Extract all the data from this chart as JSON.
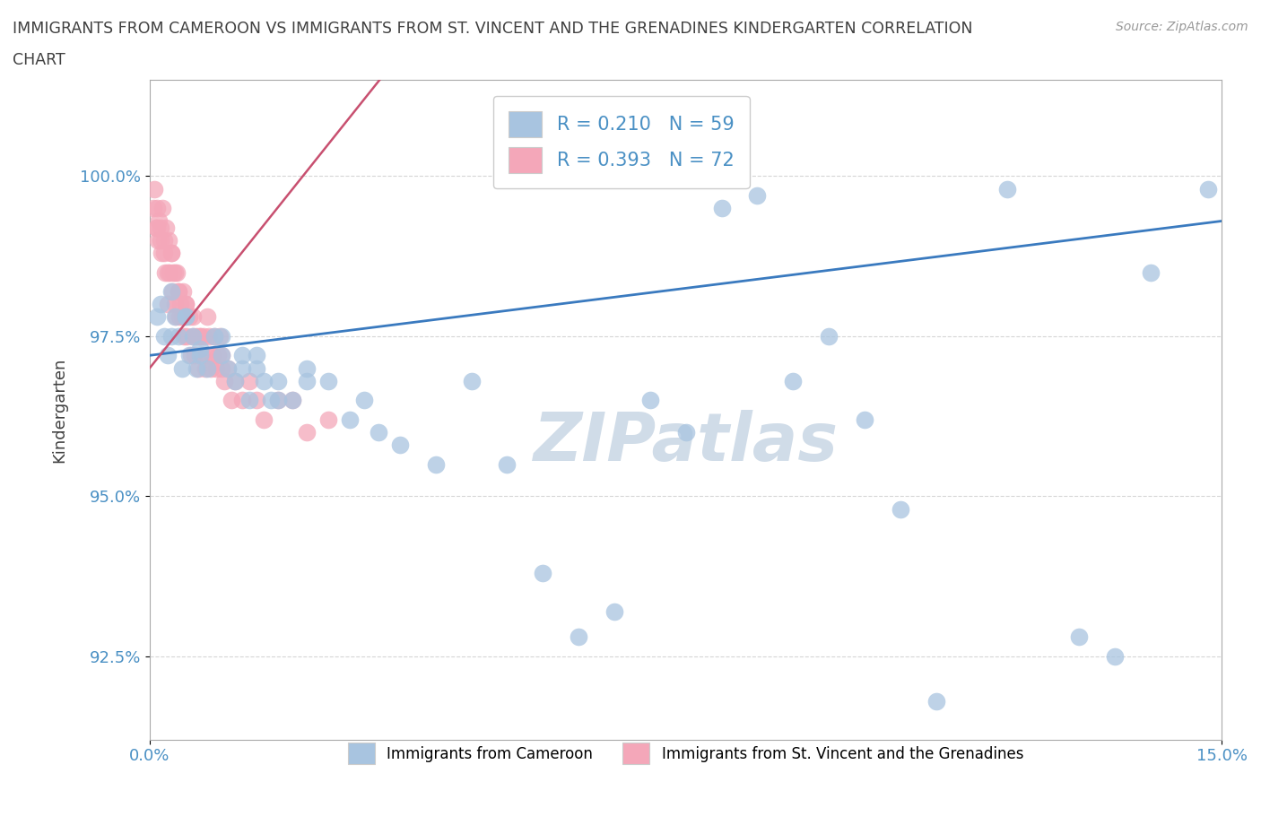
{
  "title_line1": "IMMIGRANTS FROM CAMEROON VS IMMIGRANTS FROM ST. VINCENT AND THE GRENADINES KINDERGARTEN CORRELATION",
  "title_line2": "CHART",
  "source": "Source: ZipAtlas.com",
  "ylabel": "Kindergarten",
  "xlim": [
    0.0,
    15.0
  ],
  "ylim": [
    91.2,
    101.5
  ],
  "yticks": [
    92.5,
    95.0,
    97.5,
    100.0
  ],
  "ytick_labels": [
    "92.5%",
    "95.0%",
    "97.5%",
    "100.0%"
  ],
  "xticks": [
    0.0,
    15.0
  ],
  "xtick_labels": [
    "0.0%",
    "15.0%"
  ],
  "legend_R1": "R = 0.210",
  "legend_N1": "N = 59",
  "legend_R2": "R = 0.393",
  "legend_N2": "N = 72",
  "series1_color": "#a8c4e0",
  "series2_color": "#f4a7b9",
  "trendline1_color": "#3a7abf",
  "trendline2_color": "#c85070",
  "watermark": "ZIPatlas",
  "watermark_color": "#d0dce8",
  "series1_x": [
    0.1,
    0.15,
    0.2,
    0.25,
    0.3,
    0.35,
    0.4,
    0.45,
    0.5,
    0.55,
    0.6,
    0.65,
    0.7,
    0.8,
    0.9,
    1.0,
    1.1,
    1.2,
    1.3,
    1.4,
    1.5,
    1.6,
    1.7,
    1.8,
    2.0,
    2.2,
    2.5,
    2.8,
    3.0,
    3.2,
    3.5,
    4.0,
    4.5,
    5.0,
    5.5,
    6.0,
    6.5,
    7.0,
    7.5,
    8.0,
    8.5,
    9.0,
    9.5,
    10.0,
    10.5,
    11.0,
    12.0,
    13.0,
    13.5,
    14.0,
    14.8,
    0.3,
    0.5,
    0.7,
    1.0,
    1.3,
    1.5,
    1.8,
    2.2
  ],
  "series1_y": [
    97.8,
    98.0,
    97.5,
    97.2,
    98.2,
    97.8,
    97.5,
    97.0,
    97.8,
    97.2,
    97.5,
    97.0,
    97.3,
    97.0,
    97.5,
    97.2,
    97.0,
    96.8,
    97.2,
    96.5,
    97.0,
    96.8,
    96.5,
    96.8,
    96.5,
    97.0,
    96.8,
    96.2,
    96.5,
    96.0,
    95.8,
    95.5,
    96.8,
    95.5,
    93.8,
    92.8,
    93.2,
    96.5,
    96.0,
    99.5,
    99.7,
    96.8,
    97.5,
    96.2,
    94.8,
    91.8,
    99.8,
    92.8,
    92.5,
    98.5,
    99.8,
    97.5,
    97.8,
    97.2,
    97.5,
    97.0,
    97.2,
    96.5,
    96.8
  ],
  "series2_x": [
    0.05,
    0.07,
    0.09,
    0.1,
    0.12,
    0.13,
    0.15,
    0.17,
    0.18,
    0.2,
    0.22,
    0.23,
    0.25,
    0.27,
    0.28,
    0.3,
    0.32,
    0.33,
    0.35,
    0.37,
    0.38,
    0.4,
    0.42,
    0.43,
    0.45,
    0.47,
    0.48,
    0.5,
    0.52,
    0.55,
    0.58,
    0.6,
    0.63,
    0.65,
    0.68,
    0.7,
    0.73,
    0.75,
    0.78,
    0.8,
    0.83,
    0.85,
    0.88,
    0.9,
    0.93,
    0.95,
    0.98,
    1.0,
    1.05,
    1.1,
    1.15,
    1.2,
    1.3,
    1.4,
    1.5,
    1.6,
    1.8,
    2.0,
    2.2,
    2.5,
    0.1,
    0.15,
    0.2,
    0.25,
    0.3,
    0.35,
    0.4,
    0.5,
    0.6,
    0.7,
    0.8,
    1.0
  ],
  "series2_y": [
    99.5,
    99.8,
    99.2,
    99.5,
    99.0,
    99.3,
    99.2,
    98.8,
    99.5,
    99.0,
    98.5,
    99.2,
    98.0,
    99.0,
    98.5,
    98.8,
    98.2,
    98.5,
    98.0,
    97.8,
    98.5,
    98.2,
    97.8,
    98.0,
    97.8,
    98.2,
    97.5,
    98.0,
    97.5,
    97.8,
    97.2,
    97.5,
    97.2,
    97.5,
    97.0,
    97.5,
    97.2,
    97.5,
    97.0,
    97.2,
    97.5,
    97.0,
    97.2,
    97.5,
    97.0,
    97.2,
    97.5,
    97.0,
    96.8,
    97.0,
    96.5,
    96.8,
    96.5,
    96.8,
    96.5,
    96.2,
    96.5,
    96.5,
    96.0,
    96.2,
    99.2,
    99.0,
    98.8,
    98.5,
    98.8,
    98.5,
    98.2,
    98.0,
    97.8,
    97.5,
    97.8,
    97.2
  ],
  "background_color": "#ffffff",
  "grid_color": "#cccccc",
  "title_color": "#404040",
  "tick_color": "#4a90c4",
  "axis_color": "#aaaaaa"
}
